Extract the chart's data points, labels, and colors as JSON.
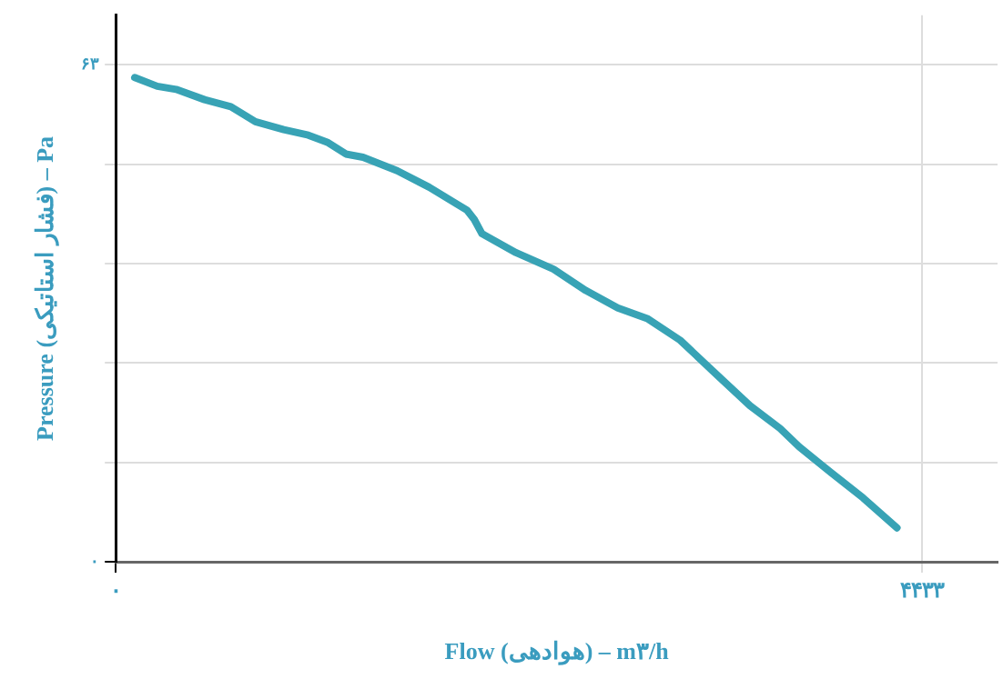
{
  "chart_data": {
    "type": "line",
    "xlabel": "Flow (هوادهی) – m۳/h",
    "ylabel": "Pressure (فشار استاتیکی) – Pa",
    "xlim": [
      0,
      4850
    ],
    "ylim": [
      0,
      69.3
    ],
    "xticks": [
      {
        "value": 0,
        "label": "۰"
      },
      {
        "value": 4433,
        "label": "۴۴۳۳"
      }
    ],
    "yticks": [
      {
        "value": 0,
        "label": "۰"
      },
      {
        "value": 12.6,
        "label": null
      },
      {
        "value": 25.2,
        "label": null
      },
      {
        "value": 37.8,
        "label": null
      },
      {
        "value": 50.4,
        "label": null
      },
      {
        "value": 63,
        "label": "۶۳"
      }
    ],
    "grid": true,
    "marker": "none",
    "line_style": "solid",
    "series": [
      {
        "color": "#38a3b5",
        "x": [
          104,
          228,
          332,
          488,
          633,
          768,
          924,
          1059,
          1163,
          1266,
          1360,
          1547,
          1723,
          1931,
          1972,
          2014,
          2201,
          2408,
          2585,
          2761,
          2927,
          3104,
          3311,
          3488,
          3654,
          3758,
          3934,
          4110,
          4297
        ],
        "values": [
          61.4,
          60.3,
          59.9,
          58.6,
          57.7,
          55.8,
          54.8,
          54.1,
          53.2,
          51.7,
          51.3,
          49.6,
          47.5,
          44.6,
          43.4,
          41.6,
          39.2,
          37.1,
          34.4,
          32.2,
          30.8,
          28.1,
          23.6,
          19.8,
          16.9,
          14.6,
          11.3,
          8.1,
          4.3
        ]
      }
    ]
  }
}
